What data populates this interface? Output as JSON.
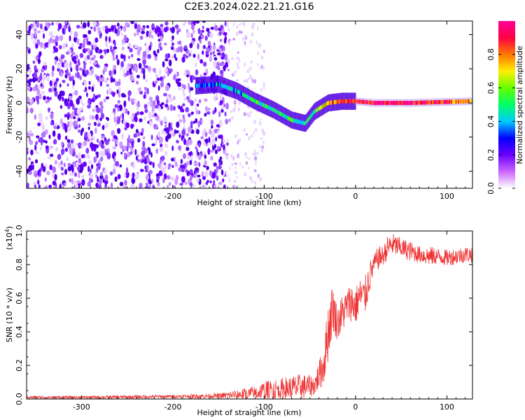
{
  "title": "C2E3.2024.022.21.21.G16",
  "chart_data": [
    {
      "type": "heatmap",
      "title": "",
      "xlabel": "Height of straight line (km)",
      "ylabel": "Frequency (Hz)",
      "xlim": [
        -360,
        128
      ],
      "ylim": [
        -50,
        48
      ],
      "x_ticks": [
        "-300",
        "-200",
        "-100",
        "0",
        "100"
      ],
      "x_tick_values": [
        -300,
        -200,
        -100,
        0,
        100
      ],
      "y_ticks": [
        "-40",
        "-20",
        "0",
        "20",
        "40"
      ],
      "y_tick_values": [
        -40,
        -20,
        0,
        20,
        40
      ],
      "ridge_line": {
        "x": [
          -175,
          -150,
          -130,
          -110,
          -90,
          -70,
          -55,
          -45,
          -30,
          -15,
          0,
          20,
          60,
          128
        ],
        "y": [
          10,
          11,
          7,
          1,
          -4,
          -10,
          -12,
          -5,
          0,
          1,
          1,
          0,
          0,
          1
        ],
        "amplitude": [
          0.3,
          0.4,
          0.4,
          0.5,
          0.5,
          0.5,
          0.45,
          0.55,
          0.75,
          0.85,
          0.9,
          0.95,
          0.95,
          0.75
        ]
      },
      "noise_region": {
        "x_start": -360,
        "x_end": -140,
        "density": "dense"
      },
      "sparse_region": {
        "x_start": -140,
        "x_end": -100,
        "density": "sparse"
      },
      "colorbar": {
        "label": "Normalized spectral amplitude",
        "range": [
          0,
          1
        ],
        "ticks": [
          "0.0",
          "0.2",
          "0.4",
          "0.6",
          "0.8"
        ],
        "tick_values": [
          0,
          0.2,
          0.4,
          0.6,
          0.8
        ],
        "colormap": [
          "#ffffff",
          "#cc66ff",
          "#6a00ff",
          "#0000ff",
          "#00ccff",
          "#00ff66",
          "#66ff00",
          "#ffee00",
          "#ff7700",
          "#ff0044",
          "#ff0099"
        ]
      }
    },
    {
      "type": "line",
      "title": "",
      "xlabel": "Height of straight line (km)",
      "ylabel": "SNR (10 * v/v)",
      "y_multiplier": "(x10",
      "y_multiplier_exp": "4",
      "y_multiplier_close": ")",
      "xlim": [
        -360,
        128
      ],
      "ylim": [
        0,
        1.0
      ],
      "x_ticks": [
        "-300",
        "-200",
        "-100",
        "0",
        "100"
      ],
      "x_tick_values": [
        -300,
        -200,
        -100,
        0,
        100
      ],
      "y_ticks": [
        "0.0",
        "0.2",
        "0.4",
        "0.6",
        "0.8",
        "1.0"
      ],
      "y_tick_values": [
        0,
        0.2,
        0.4,
        0.6,
        0.8,
        1.0
      ],
      "color": "#ee3333",
      "series": [
        {
          "x": [
            -360,
            -300,
            -250,
            -200,
            -150,
            -130,
            -110,
            -100,
            -80,
            -60,
            -45,
            -35,
            -30,
            -25,
            -20,
            -15,
            -10,
            -5,
            0,
            5,
            10,
            15,
            20,
            25,
            30,
            35,
            40,
            50,
            60,
            70,
            80,
            90,
            100,
            110,
            120,
            128
          ],
          "values": [
            0.01,
            0.01,
            0.012,
            0.015,
            0.018,
            0.025,
            0.035,
            0.045,
            0.06,
            0.07,
            0.08,
            0.2,
            0.4,
            0.55,
            0.45,
            0.5,
            0.55,
            0.58,
            0.55,
            0.62,
            0.6,
            0.72,
            0.8,
            0.84,
            0.85,
            0.9,
            0.92,
            0.9,
            0.88,
            0.86,
            0.85,
            0.85,
            0.84,
            0.85,
            0.86,
            0.86
          ],
          "noise": [
            0.008,
            0.008,
            0.01,
            0.01,
            0.015,
            0.03,
            0.045,
            0.06,
            0.07,
            0.08,
            0.06,
            0.12,
            0.18,
            0.15,
            0.1,
            0.12,
            0.1,
            0.12,
            0.12,
            0.1,
            0.12,
            0.1,
            0.06,
            0.07,
            0.06,
            0.07,
            0.07,
            0.06,
            0.06,
            0.05,
            0.06,
            0.05,
            0.05,
            0.05,
            0.05,
            0.05
          ]
        }
      ]
    }
  ]
}
